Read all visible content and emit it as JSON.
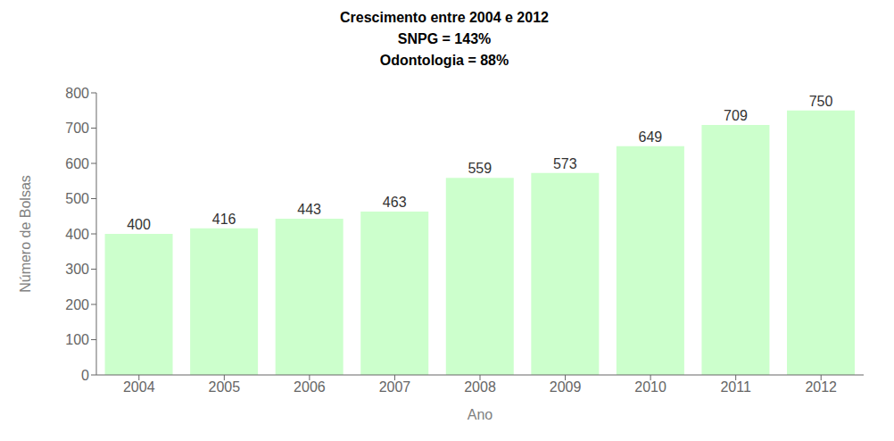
{
  "chart_data": {
    "type": "bar",
    "title": "Crescimento entre 2004 e 2012",
    "subtitle": [
      "SNPG = 143%",
      "Odontologia = 88%"
    ],
    "x_label": "Ano",
    "y_label": "Número de Bolsas",
    "categories": [
      "2004",
      "2005",
      "2006",
      "2007",
      "2008",
      "2009",
      "2010",
      "2011",
      "2012"
    ],
    "values": [
      400,
      416,
      443,
      463,
      559,
      573,
      649,
      709,
      750
    ],
    "color": "#ccffcc",
    "ylim": [
      0,
      800
    ],
    "yticks": [
      0,
      100,
      200,
      300,
      400,
      500,
      600,
      700,
      800
    ],
    "grid": false,
    "data_labels": true
  }
}
